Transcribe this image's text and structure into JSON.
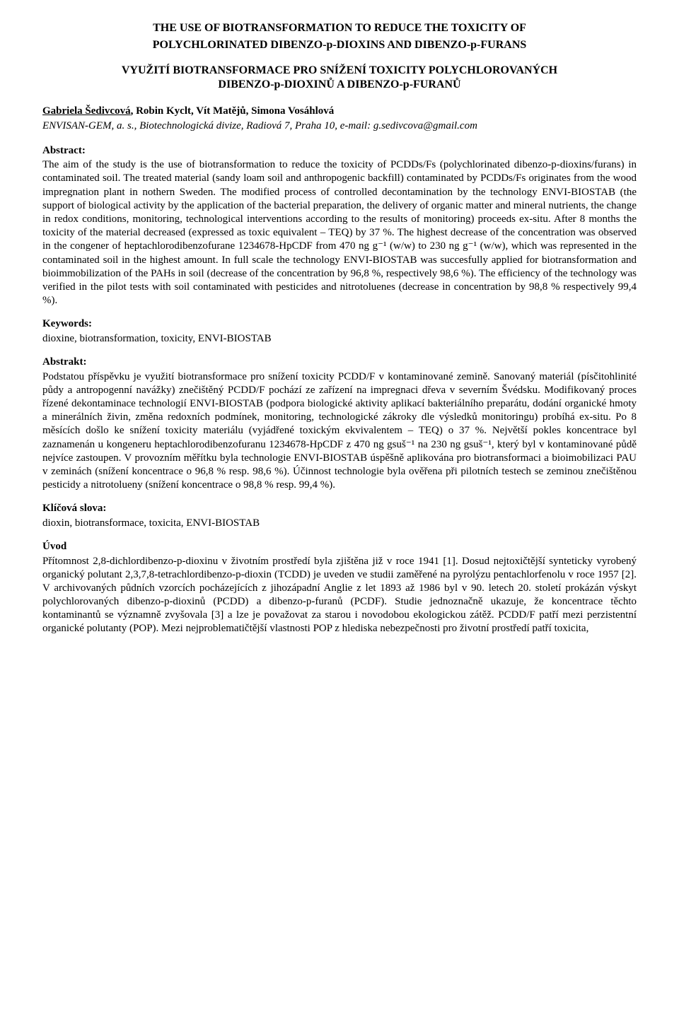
{
  "document": {
    "background_color": "#ffffff",
    "text_color": "#000000",
    "font_family": "Times New Roman",
    "base_font_size": 15,
    "title_en_line1": "THE USE OF BIOTRANSFORMATION TO REDUCE THE TOXICITY OF",
    "title_en_line2": "POLYCHLORINATED DIBENZO-p-DIOXINS AND DIBENZO-p-FURANS",
    "title_cz_line1": "VYUŽITÍ BIOTRANSFORMACE PRO SNÍŽENÍ TOXICITY POLYCHLOROVANÝCH",
    "title_cz_line2": "DIBENZO-p-DIOXINŮ A DIBENZO-p-FURANŮ",
    "author_underlined": "Gabriela Šedivcová",
    "authors_rest": ", Robin Kyclt, Vít Matějů, Simona Vosáhlová",
    "affiliation": "ENVISAN-GEM, a. s., Biotechnologická divize, Radiová 7, Praha 10, e-mail: g.sedivcova@gmail.com",
    "abstract_label": "Abstract:",
    "abstract_text": "The aim of the study is the use of biotransformation to reduce the toxicity of PCDDs/Fs (polychlorinated dibenzo-p-dioxins/furans) in contaminated soil. The treated material (sandy loam soil and anthropogenic backfill) contaminated by PCDDs/Fs originates from the wood impregnation plant in nothern Sweden. The modified process of controlled decontamination by the technology ENVI-BIOSTAB (the support of biological activity by the application of the bacterial preparation, the delivery of organic matter and mineral nutrients, the change in redox conditions, monitoring, technological interventions according to the results of monitoring) proceeds ex-situ. After 8 months the toxicity of the material decreased (expressed as toxic equivalent – TEQ) by 37 %. The highest decrease of the concentration was observed in the congener of heptachlorodibenzofurane 1234678-HpCDF from 470 ng g⁻¹ (w/w) to 230 ng g⁻¹ (w/w), which was represented in the contaminated soil in the highest amount. In full scale the technology ENVI-BIOSTAB was succesfully applied for biotransformation and bioimmobilization of the PAHs in soil (decrease of the concentration by 96,8 %, respectively 98,6 %). The efficiency of the technology was verified in the pilot tests with soil contaminated with pesticides and nitrotoluenes (decrease in concentration by 98,8 % respectively 99,4 %).",
    "keywords_label": "Keywords:",
    "keywords_text": "dioxine, biotransformation, toxicity, ENVI-BIOSTAB",
    "abstrakt_label": "Abstrakt:",
    "abstrakt_text": "Podstatou příspěvku je využití biotransformace pro snížení toxicity PCDD/F v kontaminované zemině. Sanovaný materiál (písčitohlinité půdy a antropogenní navážky) znečištěný PCDD/F pochází ze zařízení na impregnaci dřeva v severním Švédsku. Modifikovaný proces řízené dekontaminace technologií ENVI-BIOSTAB (podpora biologické aktivity aplikací bakteriálního preparátu, dodání organické hmoty a minerálních živin, změna redoxních podmínek, monitoring, technologické zákroky dle výsledků monitoringu) probíhá ex-situ. Po 8 měsících došlo ke snížení toxicity materiálu (vyjádřené toxickým ekvivalentem – TEQ) o 37 %. Největší pokles koncentrace byl zaznamenán u kongeneru heptachlorodibenzofuranu 1234678-HpCDF z 470 ng gsuš⁻¹ na 230 ng gsuš⁻¹, který byl v kontaminované půdě nejvíce zastoupen. V provozním měřítku byla technologie ENVI-BIOSTAB úspěšně aplikována pro biotransformaci a bioimobilizaci PAU v zeminách (snížení koncentrace o 96,8 % resp. 98,6 %). Účinnost technologie byla ověřena při pilotních testech se zeminou znečištěnou pesticidy a nitrotolueny (snížení koncentrace o 98,8 % resp. 99,4 %).",
    "klicova_label": "Klíčová slova:",
    "klicova_text": "dioxin, biotransformace, toxicita, ENVI-BIOSTAB",
    "uvod_label": "Úvod",
    "uvod_text": "Přítomnost 2,8-dichlordibenzo-p-dioxinu v životním prostředí byla zjištěna již v roce 1941 [1]. Dosud nejtoxičtější synteticky vyrobený organický polutant 2,3,7,8-tetrachlordibenzo-p-dioxin (TCDD) je uveden ve studii zaměřené na pyrolýzu pentachlorfenolu v roce 1957 [2]. V archivovaných půdních vzorcích pocházejících z jihozápadní Anglie z let 1893 až 1986 byl v 90. letech 20. století prokázán výskyt polychlorovaných dibenzo-p-dioxinů (PCDD) a dibenzo-p-furanů (PCDF). Studie jednoznačně ukazuje, že koncentrace těchto kontaminantů se významně zvyšovala [3] a lze je považovat za starou i novodobou ekologickou zátěž. PCDD/F patří mezi perzistentní organické polutanty (POP). Mezi nejproblematičtější vlastnosti POP z hlediska nebezpečnosti pro životní prostředí patří toxicita,"
  }
}
